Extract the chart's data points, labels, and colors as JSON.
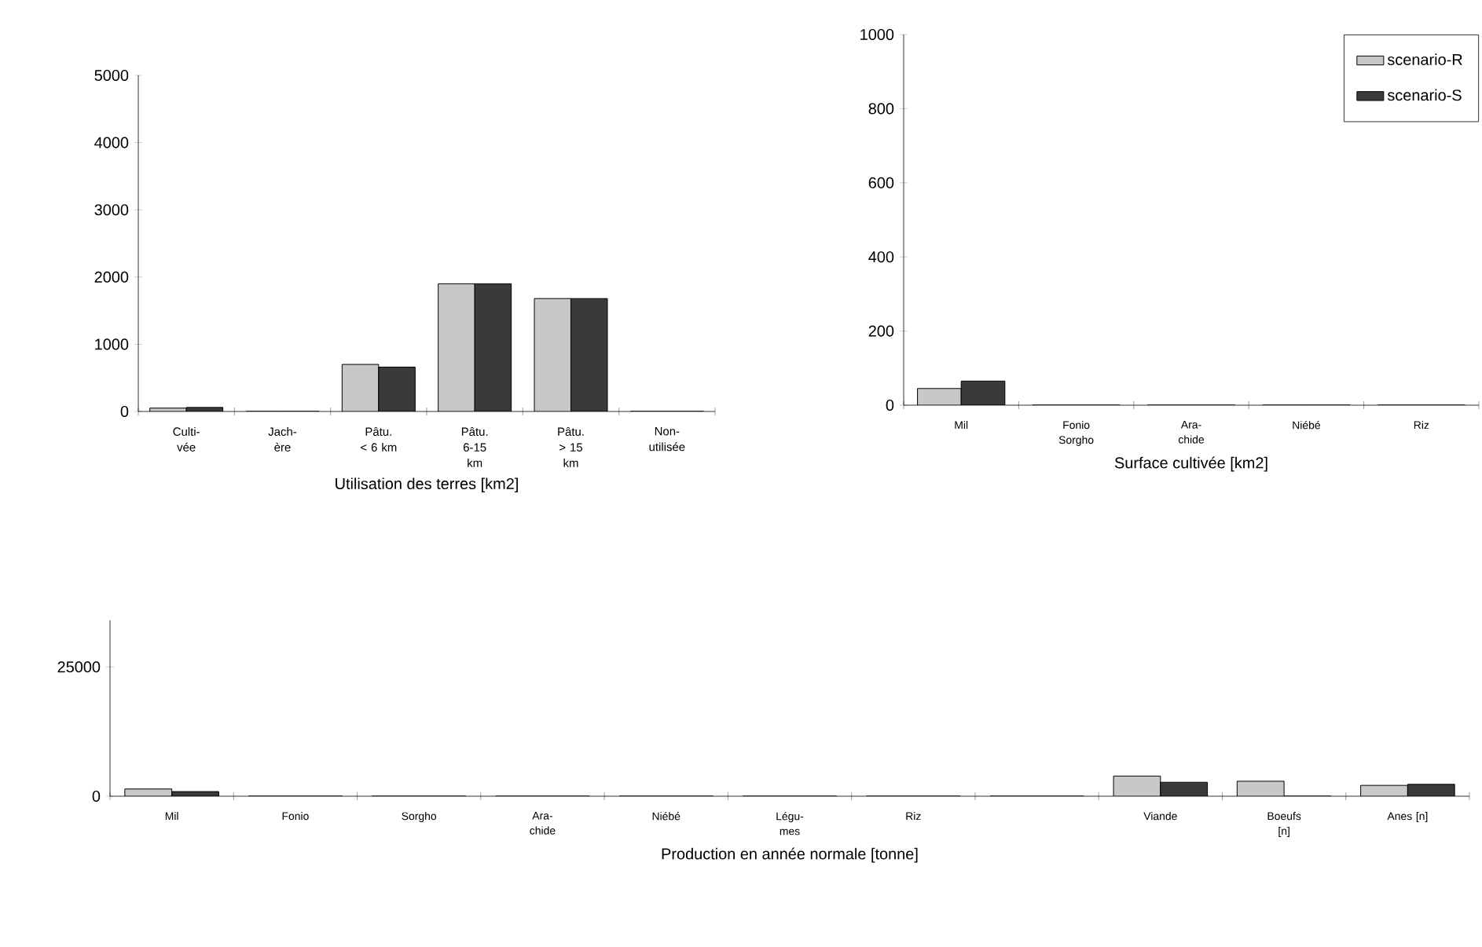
{
  "chart_data": [
    {
      "type": "bar",
      "xlabel": "Utilisation des terres  [km2]",
      "categories": [
        "Culti- vée",
        "Jach- ère",
        "Pâtu. < 6 km",
        "Pâtu. 6-15 km",
        "Pâtu. > 15 km",
        "Non- utilisée"
      ],
      "series": [
        {
          "color": "#c8c8c8",
          "values": [
            50,
            0,
            700,
            1900,
            1680,
            0
          ]
        },
        {
          "color": "#3a3a3a",
          "values": [
            60,
            0,
            660,
            1900,
            1680,
            0
          ]
        }
      ],
      "ylim": [
        0,
        5000
      ],
      "yticks": [
        0,
        1000,
        2000,
        3000,
        4000,
        5000
      ]
    },
    {
      "type": "bar",
      "xlabel": "Surface cultivée [km2]",
      "categories": [
        "Mil",
        "Fonio Sorgho",
        "Ara- chide",
        "Niébé",
        "Riz"
      ],
      "series": [
        {
          "name": "scenario-R",
          "color": "#c8c8c8",
          "values": [
            45,
            0,
            0,
            0,
            0
          ]
        },
        {
          "name": "scenario-S",
          "color": "#3a3a3a",
          "values": [
            65,
            0,
            0,
            0,
            0
          ]
        }
      ],
      "ylim": [
        0,
        1000
      ],
      "yticks": [
        0,
        200,
        400,
        600,
        800,
        1000
      ],
      "legend": "top right"
    },
    {
      "type": "bar",
      "xlabel": "Production en année normale  [tonne]",
      "categories": [
        "Mil",
        "Fonio",
        "Sorgho",
        "Ara- chide",
        "Niébé",
        "Légu- mes",
        "Riz",
        null,
        "Viande",
        "Boeufs [n]",
        "Anes [n]"
      ],
      "series": [
        {
          "color": "#c8c8c8",
          "values": [
            1400,
            0,
            0,
            0,
            0,
            0,
            0,
            0,
            3900,
            2900,
            2100
          ]
        },
        {
          "color": "#3a3a3a",
          "values": [
            900,
            0,
            0,
            0,
            0,
            0,
            0,
            0,
            2700,
            0,
            2300
          ]
        }
      ],
      "ylim": [
        0,
        34000
      ],
      "yticks": [
        0,
        25000
      ]
    }
  ]
}
